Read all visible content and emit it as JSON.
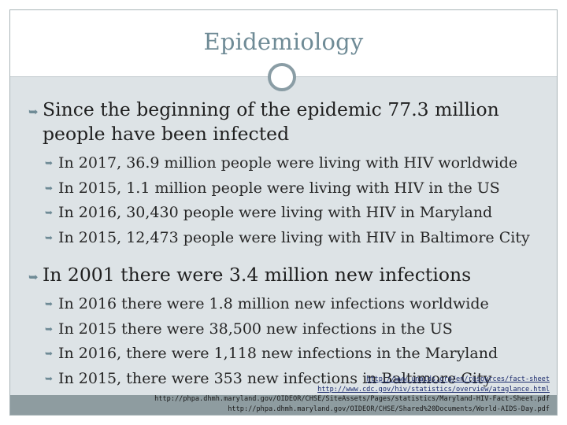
{
  "title": "Epidemiology",
  "sections": [
    {
      "heading": "Since the beginning of the epidemic 77.3 million people have been infected",
      "bullets": [
        "In 2017, 36.9 million people were living with HIV worldwide",
        "In 2015, 1.1 million people were living with HIV in the US",
        "In 2016, 30,430 people were living with HIV in Maryland",
        "In 2015, 12,473 people were living with HIV in Baltimore City"
      ]
    },
    {
      "heading": "In 2001 there were 3.4 million new infections",
      "bullets": [
        "In 2016 there were 1.8 million new infections worldwide",
        "In 2015 there were 38,500 new infections in the US",
        "In 2016, there were 1,118 new infections in the Maryland",
        "In 2015, there were 353 new infections in Baltimore City"
      ]
    }
  ],
  "sources": [
    "http://www.unaids.org/en/resources/fact-sheet",
    "http://www.cdc.gov/hiv/statistics/overview/ataglance.html",
    "http://phpa.dhmh.maryland.gov/OIDEOR/CHSE/SiteAssets/Pages/statistics/Maryland-HIV-Fact-Sheet.pdf",
    "http://phpa.dhmh.maryland.gov/OIDEOR/CHSE/Shared%20Documents/World-AIDS-Day.pdf"
  ],
  "colors": {
    "title": "#6f8b96",
    "content_background": "#dde3e6",
    "bottom_bar": "#8e9ca0"
  }
}
